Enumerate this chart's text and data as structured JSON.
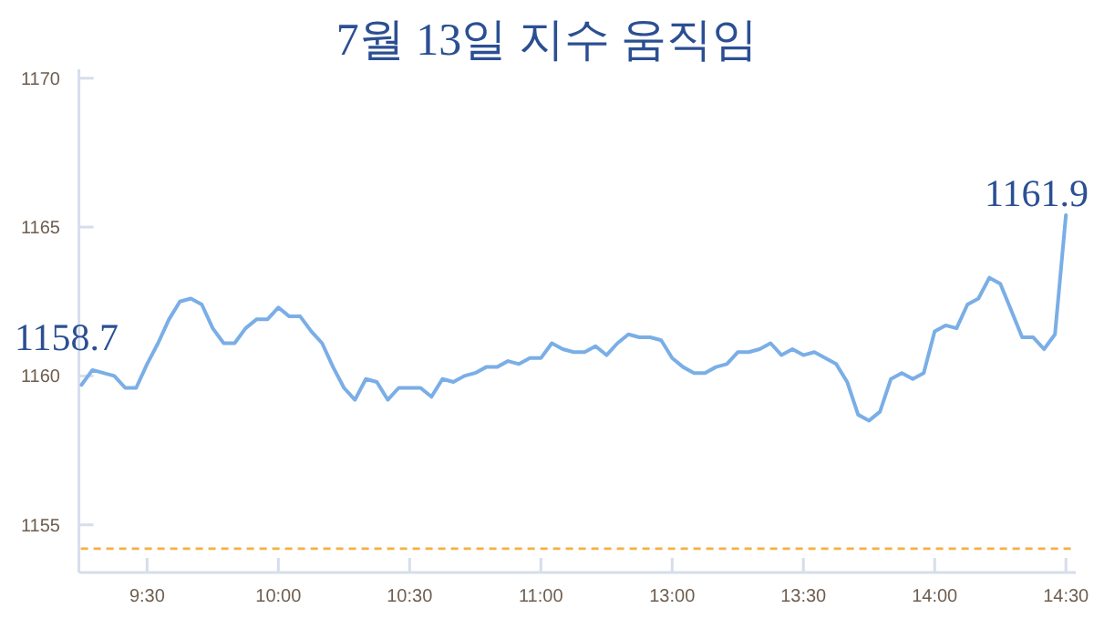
{
  "chart_data": {
    "type": "line",
    "title": "7월 13일 지수 움직임",
    "categories": [
      null,
      null,
      null,
      null,
      null,
      null,
      "9:30",
      null,
      null,
      null,
      null,
      null,
      null,
      null,
      null,
      null,
      null,
      null,
      "10:00",
      null,
      null,
      null,
      null,
      null,
      null,
      null,
      null,
      null,
      null,
      null,
      "10:30",
      null,
      null,
      null,
      null,
      null,
      null,
      null,
      null,
      null,
      null,
      null,
      "11:00",
      null,
      null,
      null,
      null,
      null,
      null,
      null,
      null,
      null,
      null,
      null,
      "13:00",
      null,
      null,
      null,
      null,
      null,
      null,
      null,
      null,
      null,
      null,
      null,
      "13:30",
      null,
      null,
      null,
      null,
      null,
      null,
      null,
      null,
      null,
      null,
      null,
      "14:00",
      null,
      null,
      null,
      null,
      null,
      null,
      null,
      null,
      null,
      null,
      null,
      "14:30"
    ],
    "series": [
      {
        "color": "#7aaee6",
        "values": [
          1159.7,
          1160.2,
          1160.1,
          1160.0,
          1159.6,
          1159.6,
          1160.4,
          1161.1,
          1161.9,
          1162.5,
          1162.6,
          1162.4,
          1161.6,
          1161.1,
          1161.1,
          1161.6,
          1161.9,
          1161.9,
          1162.3,
          1162.0,
          1162.0,
          1161.5,
          1161.1,
          1160.3,
          1159.6,
          1159.2,
          1159.9,
          1159.8,
          1159.2,
          1159.6,
          1159.6,
          1159.6,
          1159.3,
          1159.9,
          1159.8,
          1160.0,
          1160.1,
          1160.3,
          1160.3,
          1160.5,
          1160.4,
          1160.6,
          1160.6,
          1161.1,
          1160.9,
          1160.8,
          1160.8,
          1161.0,
          1160.7,
          1161.1,
          1161.4,
          1161.3,
          1161.3,
          1161.2,
          1160.6,
          1160.3,
          1160.1,
          1160.1,
          1160.3,
          1160.4,
          1160.8,
          1160.8,
          1160.9,
          1161.1,
          1160.7,
          1160.9,
          1160.7,
          1160.8,
          1160.6,
          1160.4,
          1159.8,
          1158.7,
          1158.5,
          1158.8,
          1159.9,
          1160.1,
          1159.9,
          1160.1,
          1161.5,
          1161.7,
          1161.6,
          1162.4,
          1162.6,
          1163.3,
          1163.1,
          1162.2,
          1161.3,
          1161.3,
          1160.9,
          1161.4,
          1165.4
        ]
      }
    ],
    "ylim": [
      1153.4,
      1170.3
    ],
    "yticks": [
      1155,
      1160,
      1165,
      1170
    ],
    "ref_lines": [
      {
        "axis": "y",
        "value": 1154.2,
        "color": "#f5b041",
        "line_style": "dashed"
      }
    ],
    "annotations": [
      "1158.7",
      "1161.9"
    ]
  }
}
